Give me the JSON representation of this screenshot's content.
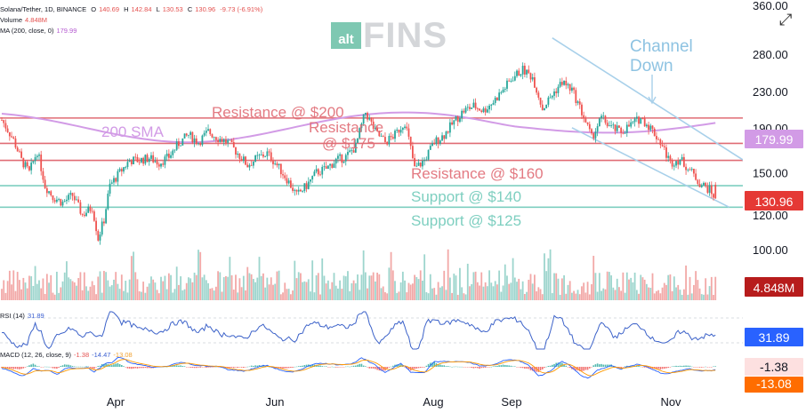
{
  "legend": {
    "symbol_line": "Solana/Tether, 1D, BINANCE",
    "o_label": "O",
    "o_val": "140.69",
    "h_label": "H",
    "h_val": "142.84",
    "l_label": "L",
    "l_val": "130.53",
    "c_label": "C",
    "c_val": "130.96",
    "chg": "-9.73 (-6.91%)",
    "volume_label": "Volume",
    "volume_val": "4.848M",
    "ma_label": "MA (200, close, 0)",
    "ma_val": "179.99",
    "rsi_label": "RSI (14)",
    "rsi_val": "31.89",
    "macd_label": "MACD (12, 26, close, 9)",
    "macd_v1": "-1.38",
    "macd_v2": "-14.47",
    "macd_v3": "-13.08"
  },
  "logo": {
    "alt": "alt",
    "fins": "FINS"
  },
  "icons": {
    "expand": "expand-icon"
  },
  "colors": {
    "up": "#26a69a",
    "down": "#ef5350",
    "resistance": "#e06c75",
    "support": "#7ecfc0",
    "sma": "#d29be6",
    "channel": "#a8d0ea",
    "rsi": "#3c62c9",
    "macd": "#2962ff",
    "signal": "#ff9800"
  },
  "chart_data": {
    "type": "candlestick",
    "title": "Solana/Tether, 1D, BINANCE",
    "x_ticks": [
      "Apr",
      "Jun",
      "Aug",
      "Sep",
      "Nov"
    ],
    "price_ticks": [
      360,
      280,
      230,
      190,
      150,
      120,
      100
    ],
    "price_ticks_labels": [
      "360.00",
      "280.00",
      "230.00",
      "190.00",
      "150.00",
      "120.00",
      "100.00"
    ],
    "scale": "log",
    "ylim": [
      95,
      370
    ],
    "current_price": "130.96",
    "sma200_value": "179.99",
    "volume_value": "4.848M",
    "rsi_value": "31.89",
    "macd_values": [
      "-1.38",
      "-13.08"
    ],
    "annotations": [
      {
        "text": "Resistance @ $200",
        "price": 200
      },
      {
        "text": "Resistance",
        "text2": "@ $175",
        "price": 175
      },
      {
        "text": "Resistance @ $160",
        "price": 160
      },
      {
        "text": "Support @ $140",
        "price": 140
      },
      {
        "text": "Support @ $125",
        "price": 125
      },
      {
        "text": "200 SMA"
      },
      {
        "text": "Channel",
        "text2": "Down"
      }
    ],
    "horizontal_levels": [
      {
        "name": "resistance",
        "price": 200
      },
      {
        "name": "resistance",
        "price": 175
      },
      {
        "name": "resistance",
        "price": 160
      },
      {
        "name": "support",
        "price": 140
      },
      {
        "name": "support",
        "price": 125
      }
    ],
    "channel": [
      {
        "from_date": "Sep",
        "from_price": 305,
        "to_date": "Nov",
        "to_price": 160
      },
      {
        "from_date": "Sep",
        "from_price": 190,
        "to_date": "Nov",
        "to_price": 125
      }
    ],
    "price_path": [
      [
        0,
        198
      ],
      [
        6,
        178
      ],
      [
        10,
        160
      ],
      [
        14,
        150
      ],
      [
        18,
        168
      ],
      [
        22,
        140
      ],
      [
        26,
        132
      ],
      [
        31,
        128
      ],
      [
        36,
        133
      ],
      [
        41,
        120
      ],
      [
        46,
        125
      ],
      [
        49,
        106
      ],
      [
        52,
        117
      ],
      [
        55,
        140
      ],
      [
        60,
        150
      ],
      [
        65,
        160
      ],
      [
        70,
        160
      ],
      [
        75,
        162
      ],
      [
        80,
        158
      ],
      [
        85,
        163
      ],
      [
        90,
        175
      ],
      [
        95,
        183
      ],
      [
        100,
        176
      ],
      [
        105,
        186
      ],
      [
        110,
        180
      ],
      [
        115,
        176
      ],
      [
        120,
        166
      ],
      [
        125,
        156
      ],
      [
        130,
        162
      ],
      [
        135,
        166
      ],
      [
        140,
        156
      ],
      [
        145,
        145
      ],
      [
        150,
        133
      ],
      [
        155,
        140
      ],
      [
        160,
        150
      ],
      [
        165,
        153
      ],
      [
        170,
        160
      ],
      [
        175,
        163
      ],
      [
        180,
        172
      ],
      [
        185,
        206
      ],
      [
        190,
        186
      ],
      [
        195,
        176
      ],
      [
        200,
        183
      ],
      [
        205,
        196
      ],
      [
        210,
        153
      ],
      [
        215,
        160
      ],
      [
        220,
        176
      ],
      [
        225,
        183
      ],
      [
        230,
        196
      ],
      [
        235,
        208
      ],
      [
        240,
        213
      ],
      [
        245,
        208
      ],
      [
        250,
        218
      ],
      [
        255,
        232
      ],
      [
        260,
        248
      ],
      [
        265,
        258
      ],
      [
        270,
        248
      ],
      [
        275,
        210
      ],
      [
        280,
        226
      ],
      [
        285,
        242
      ],
      [
        290,
        232
      ],
      [
        295,
        206
      ],
      [
        300,
        180
      ],
      [
        305,
        200
      ],
      [
        310,
        190
      ],
      [
        315,
        186
      ],
      [
        320,
        193
      ],
      [
        325,
        200
      ],
      [
        330,
        190
      ],
      [
        335,
        176
      ],
      [
        340,
        158
      ],
      [
        345,
        161
      ],
      [
        350,
        152
      ],
      [
        355,
        142
      ],
      [
        360,
        137
      ],
      [
        363,
        131
      ]
    ]
  }
}
